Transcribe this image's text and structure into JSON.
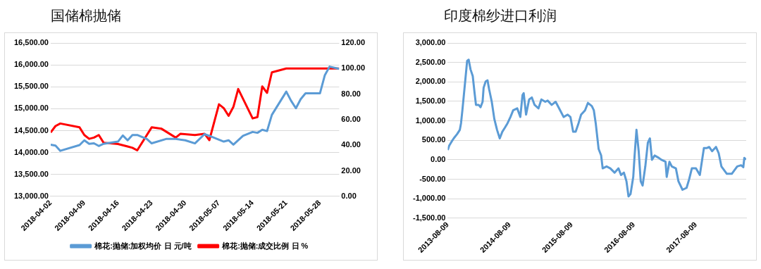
{
  "chart_data": [
    {
      "type": "line",
      "title": "国储棉抛储",
      "legend": "bottom",
      "grid": "y",
      "marker": "none",
      "series": [
        {
          "name": "棉花:抛储:加权均价 日 元/吨",
          "color": "#5b9bd5",
          "x": [
            "2018-04-02",
            "2018-04-03",
            "2018-04-04",
            "2018-04-08",
            "2018-04-09",
            "2018-04-10",
            "2018-04-11",
            "2018-04-12",
            "2018-04-13",
            "2018-04-16",
            "2018-04-17",
            "2018-04-18",
            "2018-04-19",
            "2018-04-20",
            "2018-04-22",
            "2018-04-23",
            "2018-04-26",
            "2018-04-28",
            "2018-04-30",
            "2018-05-02",
            "2018-05-04",
            "2018-05-05",
            "2018-05-08",
            "2018-05-09",
            "2018-05-10",
            "2018-05-12",
            "2018-05-14",
            "2018-05-15",
            "2018-05-16",
            "2018-05-17",
            "2018-05-18",
            "2018-05-21",
            "2018-05-22",
            "2018-05-23",
            "2018-05-24",
            "2018-05-25",
            "2018-05-28",
            "2018-05-29",
            "2018-05-30",
            "2018-06-01"
          ],
          "values": [
            14180,
            14160,
            14040,
            14170,
            14280,
            14200,
            14210,
            14150,
            14200,
            14250,
            14390,
            14280,
            14400,
            14400,
            14310,
            14210,
            14310,
            14310,
            14280,
            14210,
            14420,
            14380,
            14250,
            14280,
            14180,
            14380,
            14470,
            14450,
            14520,
            14490,
            14860,
            15390,
            15180,
            15010,
            15220,
            15350,
            15350,
            15760,
            15960,
            15910
          ]
        },
        {
          "name": "棉花:抛储:成交比例 日 %",
          "color": "#ff0000",
          "axis": "y2",
          "x": [
            "2018-04-02",
            "2018-04-03",
            "2018-04-04",
            "2018-04-08",
            "2018-04-09",
            "2018-04-10",
            "2018-04-11",
            "2018-04-12",
            "2018-04-13",
            "2018-04-16",
            "2018-04-18",
            "2018-04-19",
            "2018-04-20",
            "2018-04-23",
            "2018-04-25",
            "2018-04-28",
            "2018-04-29",
            "2018-05-02",
            "2018-05-04",
            "2018-05-05",
            "2018-05-07",
            "2018-05-08",
            "2018-05-09",
            "2018-05-10",
            "2018-05-11",
            "2018-05-14",
            "2018-05-15",
            "2018-05-16",
            "2018-05-17",
            "2018-05-18",
            "2018-05-21",
            "2018-06-01"
          ],
          "values": [
            50,
            55,
            57,
            54,
            48,
            45,
            46,
            48,
            42,
            41,
            39,
            38,
            36,
            54,
            53,
            46,
            49,
            48,
            49,
            44,
            72,
            69,
            63,
            70,
            84,
            61,
            62,
            86,
            81,
            97,
            100,
            100
          ]
        }
      ],
      "xlim": [
        "2018-04-02",
        "2018-06-01"
      ],
      "xticks": [
        "2018-04-02",
        "2018-04-09",
        "2018-04-16",
        "2018-04-23",
        "2018-04-30",
        "2018-05-07",
        "2018-05-14",
        "2018-05-21",
        "2018-05-28"
      ],
      "ylim": [
        13000,
        16500
      ],
      "yticks": [
        {
          "value": 13000,
          "label": "13,000.00"
        },
        {
          "value": 13500,
          "label": "13,500.00"
        },
        {
          "value": 14000,
          "label": "14,000.00"
        },
        {
          "value": 14500,
          "label": "14,500.00"
        },
        {
          "value": 15000,
          "label": "15,000.00"
        },
        {
          "value": 15500,
          "label": "15,500.00"
        },
        {
          "value": 16000,
          "label": "16,000.00"
        },
        {
          "value": 16500,
          "label": "16,500.00"
        }
      ],
      "y2lim": [
        0,
        120
      ],
      "y2ticks": [
        {
          "value": 0,
          "label": "0.00"
        },
        {
          "value": 20,
          "label": "20.00"
        },
        {
          "value": 40,
          "label": "40.00"
        },
        {
          "value": 60,
          "label": "60.00"
        },
        {
          "value": 80,
          "label": "80.00"
        },
        {
          "value": 100,
          "label": "100.00"
        },
        {
          "value": 120,
          "label": "120.00"
        }
      ]
    },
    {
      "type": "line",
      "title": "印度棉纱进口利润",
      "grid": "y",
      "marker": "none",
      "x": [
        "2013-08-09",
        "2013-08-17",
        "2013-09-01",
        "2013-09-13",
        "2013-10-03",
        "2013-10-19",
        "2013-10-26",
        "2013-11-03",
        "2013-11-20",
        "2013-12-01",
        "2013-12-10",
        "2013-12-21",
        "2014-01-03",
        "2014-01-14",
        "2014-01-22",
        "2014-02-07",
        "2014-02-18",
        "2014-03-02",
        "2014-03-08",
        "2014-03-20",
        "2014-03-31",
        "2014-04-09",
        "2014-04-25",
        "2014-05-10",
        "2014-05-26",
        "2014-06-11",
        "2014-06-26",
        "2014-07-12",
        "2014-07-27",
        "2014-08-13",
        "2014-08-29",
        "2014-09-22",
        "2014-10-10",
        "2014-10-23",
        "2014-10-30",
        "2014-11-13",
        "2014-12-01",
        "2014-12-17",
        "2015-01-02",
        "2015-01-25",
        "2015-02-11",
        "2015-03-06",
        "2015-03-20",
        "2015-04-13",
        "2015-05-06",
        "2015-05-29",
        "2015-06-22",
        "2015-07-16",
        "2015-08-01",
        "2015-08-17",
        "2015-09-01",
        "2015-09-18",
        "2015-10-03",
        "2015-10-26",
        "2015-11-12",
        "2015-12-05",
        "2015-12-17",
        "2015-12-28",
        "2016-01-14",
        "2016-01-29",
        "2016-02-07",
        "2016-03-01",
        "2016-03-23",
        "2016-04-17",
        "2016-05-10",
        "2016-05-25",
        "2016-06-11",
        "2016-06-26",
        "2016-07-08",
        "2016-07-20",
        "2016-08-05",
        "2016-08-13",
        "2016-08-24",
        "2016-09-06",
        "2016-09-18",
        "2016-09-29",
        "2016-10-15",
        "2016-10-30",
        "2016-11-11",
        "2016-11-23",
        "2016-12-09",
        "2017-01-02",
        "2017-01-18",
        "2017-02-11",
        "2017-02-18",
        "2017-03-06",
        "2017-03-20",
        "2017-04-13",
        "2017-04-28",
        "2017-05-22",
        "2017-06-15",
        "2017-06-30",
        "2017-07-16",
        "2017-08-09",
        "2017-09-01",
        "2017-09-25",
        "2017-10-11",
        "2017-10-26",
        "2017-11-12",
        "2017-12-05",
        "2017-12-21",
        "2018-01-06",
        "2018-02-07",
        "2018-03-08",
        "2018-04-09",
        "2018-05-02",
        "2018-05-15",
        "2018-05-21",
        "2018-05-30"
      ],
      "series": [
        {
          "color": "#5b9bd5",
          "values": [
            250,
            360,
            470,
            550,
            660,
            770,
            940,
            1270,
            2040,
            2540,
            2570,
            2320,
            2150,
            1710,
            1410,
            1410,
            1350,
            1490,
            1850,
            2010,
            2040,
            1820,
            1490,
            1050,
            770,
            550,
            720,
            830,
            940,
            1100,
            1270,
            1320,
            1100,
            1660,
            1710,
            1160,
            1550,
            1600,
            1410,
            1320,
            1550,
            1490,
            1520,
            1410,
            1490,
            1300,
            1100,
            1160,
            1100,
            720,
            720,
            940,
            1160,
            1270,
            1460,
            1380,
            1270,
            940,
            280,
            110,
            -220,
            -170,
            -220,
            -330,
            -220,
            -390,
            -330,
            -550,
            -940,
            -880,
            -440,
            110,
            770,
            220,
            -550,
            -660,
            -170,
            440,
            550,
            0,
            110,
            50,
            0,
            -50,
            -440,
            -50,
            -170,
            -220,
            -550,
            -770,
            -720,
            -500,
            -220,
            -220,
            -390,
            300,
            300,
            330,
            220,
            330,
            170,
            -170,
            -360,
            -360,
            -170,
            -140,
            -190,
            50,
            0
          ]
        }
      ],
      "xlim": [
        "2013-08-09",
        "2018-06-01"
      ],
      "xticks": [
        "2013-08-09",
        "2014-08-09",
        "2015-08-09",
        "2016-08-09",
        "2017-08-09"
      ],
      "ylim": [
        -1500,
        3000
      ],
      "yticks": [
        {
          "value": -1500,
          "label": "-1,500.00"
        },
        {
          "value": -1000,
          "label": "-1,000.00"
        },
        {
          "value": -500,
          "label": "-500.00"
        },
        {
          "value": 0,
          "label": "0.00"
        },
        {
          "value": 500,
          "label": "500.00"
        },
        {
          "value": 1000,
          "label": "1,000.00"
        },
        {
          "value": 1500,
          "label": "1,500.00"
        },
        {
          "value": 2000,
          "label": "2,000.00"
        },
        {
          "value": 2500,
          "label": "2,500.00"
        },
        {
          "value": 3000,
          "label": "3,000.00"
        }
      ]
    }
  ]
}
